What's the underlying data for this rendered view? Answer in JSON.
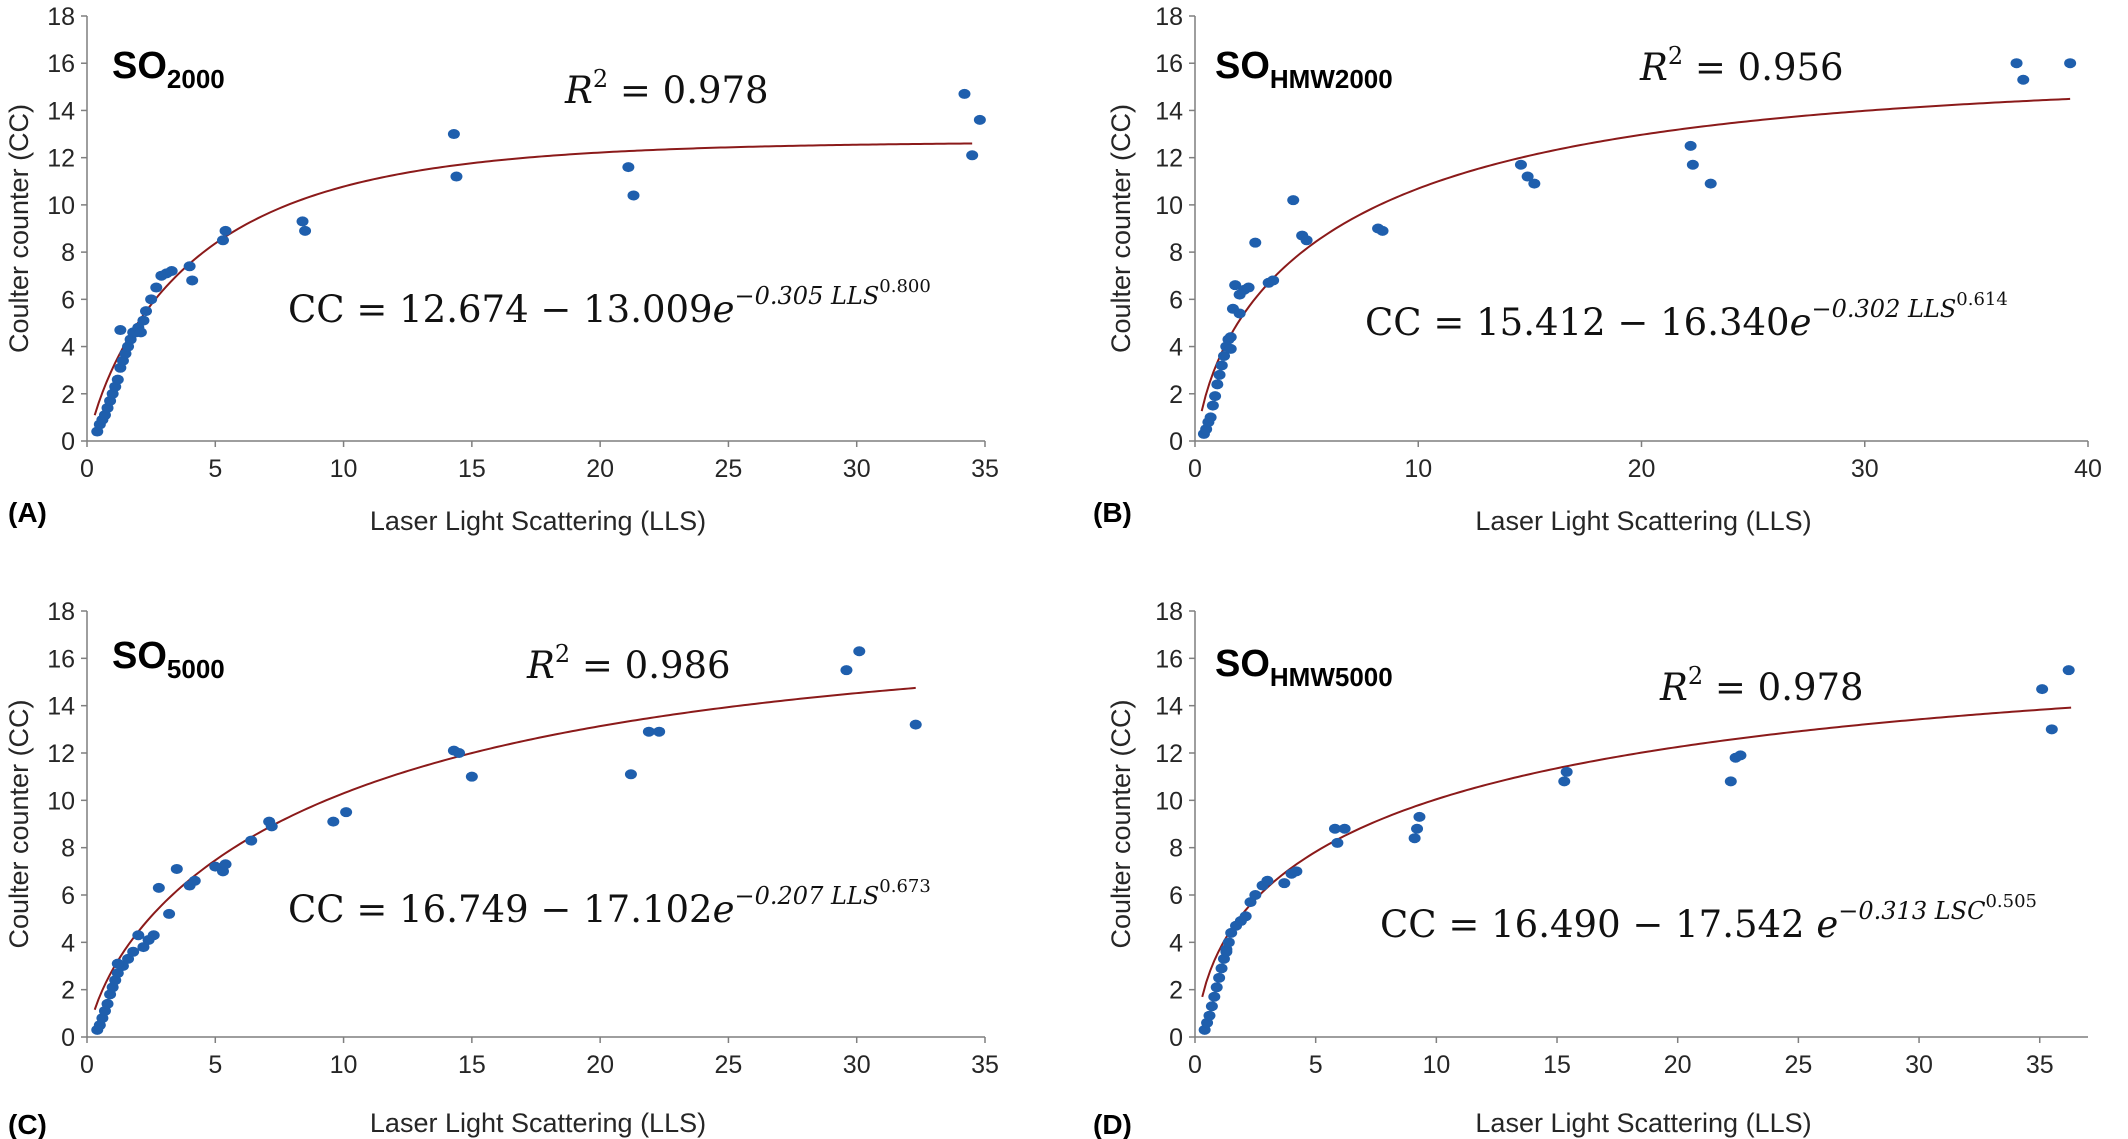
{
  "colors": {
    "points": "#1f5fad",
    "fit_curve": "#8b1a1a",
    "axis": "#7f7f7f",
    "text": "#262626"
  },
  "chart_data": [
    {
      "type": "scatter",
      "panel_letter": "(A)",
      "title": "SO",
      "title_subscript": "2000",
      "xlabel": "Laser Light Scattering (LLS)",
      "ylabel": "Coulter counter (CC)",
      "xlim": [
        0,
        35
      ],
      "ylim": [
        0,
        18
      ],
      "xticks": [
        0,
        5,
        10,
        15,
        20,
        25,
        30,
        35
      ],
      "yticks": [
        0,
        2,
        4,
        6,
        8,
        10,
        12,
        14,
        16,
        18
      ],
      "grid": false,
      "r2_lhs": "R",
      "r2_rhs": " = 0.978",
      "equation": {
        "lhs": "CC = 12.674 − 13.009",
        "base": "e",
        "exponent": "−0.305 LLS",
        "power": "0.800"
      },
      "fit": {
        "a": 12.674,
        "b": 13.009,
        "k": 0.305,
        "p": 0.8,
        "x_range": [
          0.3,
          34.5
        ]
      },
      "series": [
        {
          "x": [
            0.4,
            0.5,
            0.6,
            0.7,
            0.8,
            0.9,
            1.0,
            1.1,
            1.2,
            1.3,
            1.4,
            1.5,
            1.6,
            1.7,
            1.8,
            1.9,
            2.0,
            2.1,
            2.2,
            2.3,
            2.5,
            2.7,
            2.9,
            3.1,
            3.3,
            4.0,
            4.1,
            5.3,
            5.4,
            8.4,
            8.5,
            14.3,
            14.4,
            21.1,
            21.3,
            34.2,
            34.5,
            34.8,
            1.3
          ],
          "y": [
            0.4,
            0.7,
            0.9,
            1.1,
            1.4,
            1.7,
            2.0,
            2.3,
            2.6,
            3.1,
            3.4,
            3.7,
            4.0,
            4.3,
            4.6,
            4.6,
            4.8,
            4.6,
            5.1,
            5.5,
            6.0,
            6.5,
            7.0,
            7.1,
            7.2,
            7.4,
            6.8,
            8.5,
            8.9,
            9.3,
            8.9,
            13.0,
            11.2,
            11.6,
            10.4,
            14.7,
            12.1,
            13.6,
            4.7
          ]
        }
      ]
    },
    {
      "type": "scatter",
      "panel_letter": "(B)",
      "title": "SO",
      "title_subscript": "HMW2000",
      "xlabel": "Laser Light Scattering (LLS)",
      "ylabel": "Coulter counter (CC)",
      "xlim": [
        0,
        40
      ],
      "ylim": [
        0,
        18
      ],
      "xticks": [
        0,
        10,
        20,
        30,
        40
      ],
      "yticks": [
        0,
        2,
        4,
        6,
        8,
        10,
        12,
        14,
        16,
        18
      ],
      "grid": false,
      "r2_lhs": "R",
      "r2_rhs": " = 0.956",
      "equation": {
        "lhs": "CC = 15.412 − 16.340",
        "base": "e",
        "exponent": "−0.302 LLS",
        "power": "0.614"
      },
      "fit": {
        "a": 15.412,
        "b": 16.34,
        "k": 0.302,
        "p": 0.614,
        "x_range": [
          0.3,
          39.2
        ]
      },
      "series": [
        {
          "x": [
            0.4,
            0.5,
            0.6,
            0.7,
            0.8,
            0.9,
            1.0,
            1.1,
            1.2,
            1.3,
            1.4,
            1.5,
            1.6,
            1.7,
            1.8,
            2.0,
            2.2,
            2.4,
            2.7,
            3.3,
            3.5,
            4.4,
            4.8,
            5.0,
            8.2,
            8.4,
            14.6,
            14.9,
            15.2,
            22.2,
            22.3,
            23.1,
            36.8,
            37.1,
            39.2,
            1.6,
            2.0
          ],
          "y": [
            0.3,
            0.5,
            0.8,
            1.0,
            1.5,
            1.9,
            2.4,
            2.8,
            3.2,
            3.6,
            4.0,
            4.3,
            4.4,
            5.6,
            6.6,
            5.4,
            6.4,
            6.5,
            8.4,
            6.7,
            6.8,
            10.2,
            8.7,
            8.5,
            9.0,
            8.9,
            11.7,
            11.2,
            10.9,
            12.5,
            11.7,
            10.9,
            16.0,
            15.3,
            16.0,
            3.9,
            6.2
          ]
        }
      ]
    },
    {
      "type": "scatter",
      "panel_letter": "(C)",
      "title": "SO",
      "title_subscript": "5000",
      "xlabel": "Laser Light Scattering (LLS)",
      "ylabel": "Coulter counter (CC)",
      "xlim": [
        0,
        35
      ],
      "ylim": [
        0,
        18
      ],
      "xticks": [
        0,
        5,
        10,
        15,
        20,
        25,
        30,
        35
      ],
      "yticks": [
        0,
        2,
        4,
        6,
        8,
        10,
        12,
        14,
        16,
        18
      ],
      "grid": false,
      "r2_lhs": "R",
      "r2_rhs": " = 0.986",
      "equation": {
        "lhs": "CC = 16.749 − 17.102",
        "base": "e",
        "exponent": "−0.207 LLS",
        "power": "0.673"
      },
      "fit": {
        "a": 16.749,
        "b": 17.102,
        "k": 0.207,
        "p": 0.673,
        "x_range": [
          0.3,
          32.3
        ]
      },
      "series": [
        {
          "x": [
            0.4,
            0.5,
            0.6,
            0.7,
            0.8,
            0.9,
            1.0,
            1.1,
            1.2,
            1.4,
            1.6,
            1.8,
            2.0,
            2.2,
            2.4,
            2.6,
            2.8,
            3.2,
            3.5,
            4.0,
            4.2,
            5.0,
            5.3,
            5.4,
            6.4,
            7.1,
            7.2,
            9.6,
            10.1,
            14.3,
            14.5,
            15.0,
            21.2,
            21.9,
            22.3,
            29.6,
            30.1,
            32.3,
            1.2
          ],
          "y": [
            0.3,
            0.5,
            0.8,
            1.1,
            1.4,
            1.8,
            2.1,
            2.4,
            2.7,
            3.0,
            3.3,
            3.6,
            4.3,
            3.8,
            4.1,
            4.3,
            6.3,
            5.2,
            7.1,
            6.4,
            6.6,
            7.2,
            7.0,
            7.3,
            8.3,
            9.1,
            8.9,
            9.1,
            9.5,
            12.1,
            12.0,
            11.0,
            11.1,
            12.9,
            12.9,
            15.5,
            16.3,
            13.2,
            3.1
          ]
        }
      ]
    },
    {
      "type": "scatter",
      "panel_letter": "(D)",
      "title": "SO",
      "title_subscript": "HMW5000",
      "xlabel": "Laser Light Scattering (LLS)",
      "ylabel": "Coulter counter (CC)",
      "xlim": [
        0,
        37
      ],
      "ylim": [
        0,
        18
      ],
      "xticks": [
        0,
        5,
        10,
        15,
        20,
        25,
        30,
        35
      ],
      "yticks": [
        0,
        2,
        4,
        6,
        8,
        10,
        12,
        14,
        16,
        18
      ],
      "grid": false,
      "r2_lhs": "R",
      "r2_rhs": " = 0.978",
      "equation": {
        "lhs": "CC = 16.490 − 17.542 ",
        "base": "e",
        "exponent": "−0.313  LSC",
        "power": "0.505"
      },
      "fit": {
        "a": 16.49,
        "b": 17.542,
        "k": 0.313,
        "p": 0.505,
        "x_range": [
          0.3,
          36.3
        ]
      },
      "series": [
        {
          "x": [
            0.4,
            0.5,
            0.6,
            0.7,
            0.8,
            0.9,
            1.0,
            1.1,
            1.2,
            1.3,
            1.4,
            1.5,
            1.7,
            1.9,
            2.1,
            2.3,
            2.5,
            2.8,
            3.0,
            3.7,
            4.0,
            4.2,
            5.8,
            5.9,
            6.2,
            9.1,
            9.2,
            9.3,
            15.3,
            15.4,
            22.2,
            22.4,
            22.6,
            35.1,
            35.5,
            36.2,
            1.3
          ],
          "y": [
            0.3,
            0.6,
            0.9,
            1.3,
            1.7,
            2.1,
            2.5,
            2.9,
            3.3,
            3.7,
            4.0,
            4.4,
            4.7,
            4.9,
            5.1,
            5.7,
            6.0,
            6.4,
            6.6,
            6.5,
            6.9,
            7.0,
            8.8,
            8.2,
            8.8,
            8.4,
            8.8,
            9.3,
            10.8,
            11.2,
            10.8,
            11.8,
            11.9,
            14.7,
            13.0,
            15.5,
            3.6
          ]
        }
      ]
    }
  ]
}
